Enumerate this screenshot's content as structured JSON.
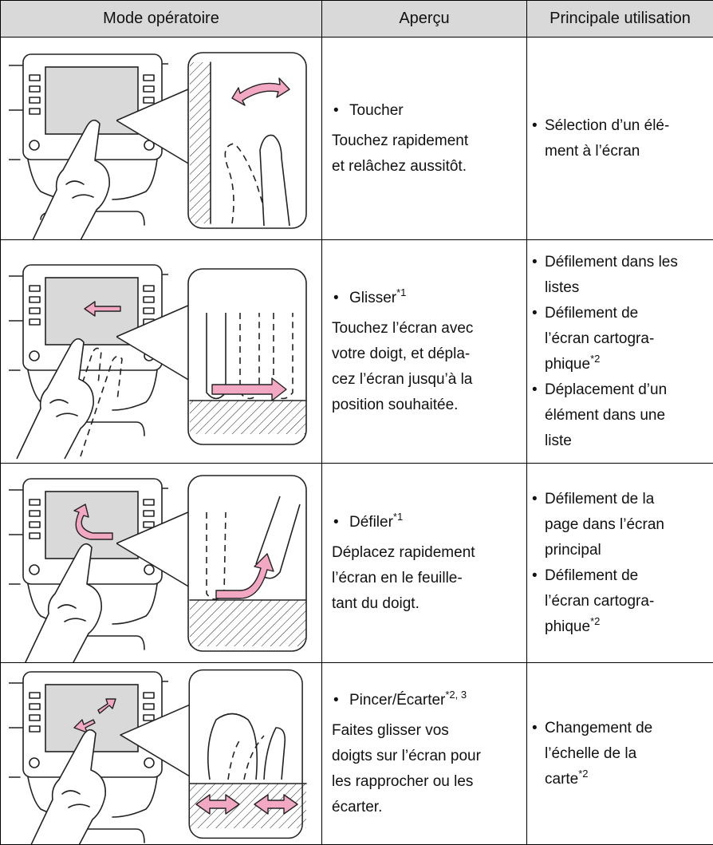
{
  "table": {
    "header": [
      "Mode opératoire",
      "Aperçu",
      "Principale utilisation"
    ],
    "rows": [
      {
        "gesture": "Toucher",
        "description": [
          "Touchez rapidement",
          "et relâchez aussitôt."
        ],
        "usage": [
          {
            "lines": [
              "Sélection d’un élé-",
              "ment à l’écran"
            ]
          }
        ]
      },
      {
        "gesture": "Glisser",
        "gesture_note": "*1",
        "description": [
          "Touchez l’écran avec",
          "votre doigt, et dépla-",
          "cez l’écran jusqu’à la",
          "position souhaitée."
        ],
        "usage": [
          {
            "lines": [
              "Défilement dans les",
              "listes"
            ]
          },
          {
            "lines": [
              "Défilement de",
              "l’écran cartogra-",
              "phique"
            ],
            "note": "*2"
          },
          {
            "lines": [
              "Déplacement d’un",
              "élément dans une",
              "liste"
            ]
          }
        ]
      },
      {
        "gesture": "Défiler",
        "gesture_note": "*1",
        "description": [
          "Déplacez rapidement",
          "l’écran en le feuille-",
          "tant du doigt."
        ],
        "usage": [
          {
            "lines": [
              "Défilement de la",
              "page dans l’écran",
              "principal"
            ]
          },
          {
            "lines": [
              "Défilement de",
              "l’écran cartogra-",
              "phique"
            ],
            "note": "*2"
          }
        ]
      },
      {
        "gesture": "Pincer/Écarter",
        "gesture_note": "*2, 3",
        "description": [
          "Faites glisser vos",
          "doigts sur l’écran pour",
          "les rapprocher ou les",
          "écarter."
        ],
        "usage": [
          {
            "lines": [
              "Changement de",
              "l’échelle de la",
              "carte"
            ],
            "note": "*2"
          }
        ]
      }
    ]
  }
}
